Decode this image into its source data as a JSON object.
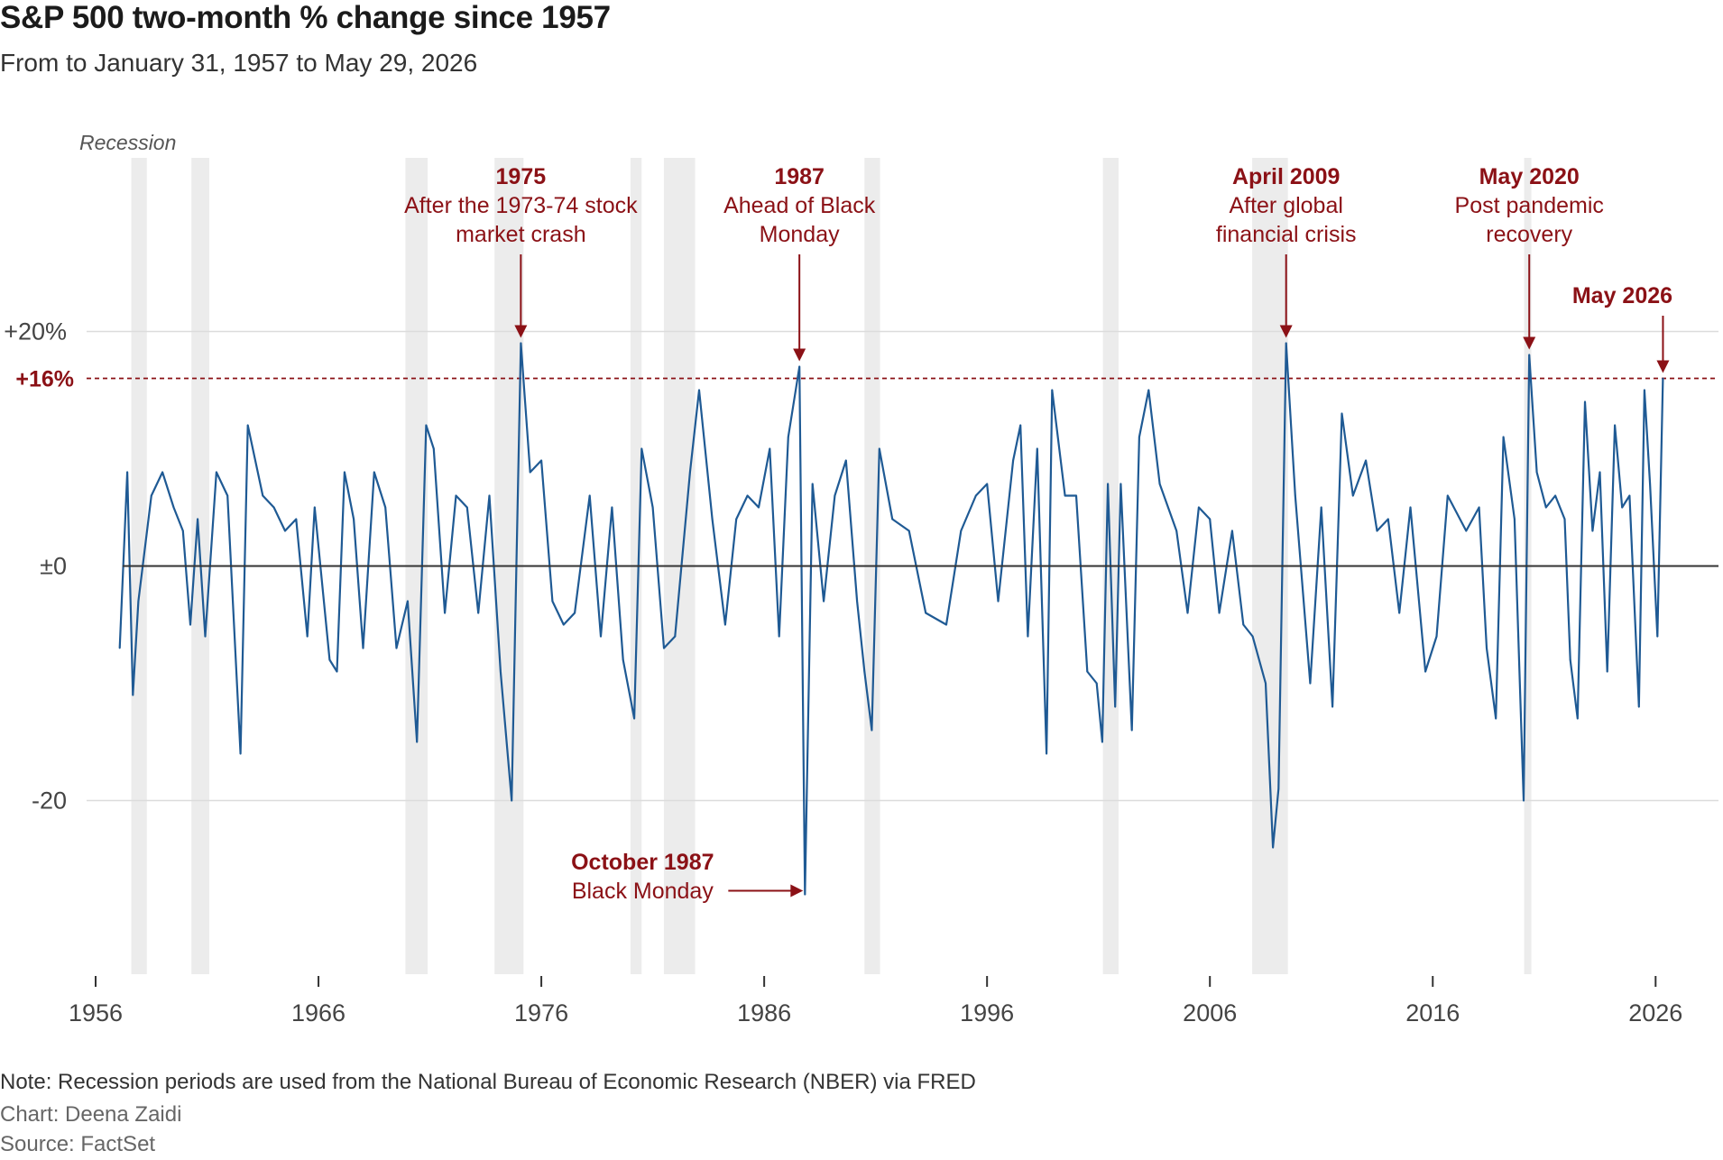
{
  "title": "S&P 500 two-month % change since 1957",
  "subtitle": "From to January 31, 1957 to May 29, 2026",
  "footer": {
    "note": "Note: Recession periods are used from the National Bureau of Economic Research (NBER) via FRED",
    "credit": "Chart: Deena Zaidi",
    "source": "Source: FactSet"
  },
  "colors": {
    "series": "#1f5a94",
    "annotation": "#8b1116",
    "recession": "#ececec",
    "grid": "#dcdcdc",
    "zero": "#333333"
  },
  "chart_data": {
    "type": "bar",
    "unit": "%",
    "x_range": [
      1956,
      2027
    ],
    "ylim": [
      -35,
      35
    ],
    "x_ticks": [
      {
        "year": 1956,
        "label": "1956"
      },
      {
        "year": 1966,
        "label": "1966"
      },
      {
        "year": 1976,
        "label": "1976"
      },
      {
        "year": 1986,
        "label": "1986"
      },
      {
        "year": 1996,
        "label": "1996"
      },
      {
        "year": 2006,
        "label": "2006"
      },
      {
        "year": 2016,
        "label": "2016"
      },
      {
        "year": 2026,
        "label": "2026"
      }
    ],
    "y_ticks": [
      {
        "value": 20,
        "label": "+20%"
      },
      {
        "value": 0,
        "label": "±0"
      },
      {
        "value": -20,
        "label": "-20"
      }
    ],
    "grid": true,
    "reference_line": {
      "value": 16,
      "label": "+16%"
    },
    "recession_label": "Recession",
    "recessions": [
      [
        1957.6,
        1958.3
      ],
      [
        1960.3,
        1961.1
      ],
      [
        1969.9,
        1970.9
      ],
      [
        1973.9,
        1975.2
      ],
      [
        1980.0,
        1980.5
      ],
      [
        1981.5,
        1982.9
      ],
      [
        1990.5,
        1991.2
      ],
      [
        2001.2,
        2001.9
      ],
      [
        2007.9,
        2009.5
      ],
      [
        2020.1,
        2020.4
      ]
    ],
    "series": [
      {
        "points": [
          [
            1957.08,
            -7
          ],
          [
            1957.42,
            8
          ],
          [
            1957.67,
            -11
          ],
          [
            1957.92,
            -3
          ],
          [
            1958.5,
            6
          ],
          [
            1959.0,
            8
          ],
          [
            1959.5,
            5
          ],
          [
            1959.92,
            3
          ],
          [
            1960.25,
            -5
          ],
          [
            1960.58,
            4
          ],
          [
            1960.92,
            -6
          ],
          [
            1961.42,
            8
          ],
          [
            1961.92,
            6
          ],
          [
            1962.5,
            -16
          ],
          [
            1962.83,
            12
          ],
          [
            1963.5,
            6
          ],
          [
            1964.0,
            5
          ],
          [
            1964.5,
            3
          ],
          [
            1965.0,
            4
          ],
          [
            1965.5,
            -6
          ],
          [
            1965.83,
            5
          ],
          [
            1966.5,
            -8
          ],
          [
            1966.83,
            -9
          ],
          [
            1967.17,
            8
          ],
          [
            1967.58,
            4
          ],
          [
            1968.0,
            -7
          ],
          [
            1968.5,
            8
          ],
          [
            1969.0,
            5
          ],
          [
            1969.5,
            -7
          ],
          [
            1970.0,
            -3
          ],
          [
            1970.42,
            -15
          ],
          [
            1970.83,
            12
          ],
          [
            1971.17,
            10
          ],
          [
            1971.67,
            -4
          ],
          [
            1972.17,
            6
          ],
          [
            1972.67,
            5
          ],
          [
            1973.17,
            -4
          ],
          [
            1973.67,
            6
          ],
          [
            1974.17,
            -9
          ],
          [
            1974.67,
            -20
          ],
          [
            1975.08,
            19
          ],
          [
            1975.5,
            8
          ],
          [
            1976.0,
            9
          ],
          [
            1976.5,
            -3
          ],
          [
            1977.0,
            -5
          ],
          [
            1977.5,
            -4
          ],
          [
            1978.17,
            6
          ],
          [
            1978.67,
            -6
          ],
          [
            1979.17,
            5
          ],
          [
            1979.67,
            -8
          ],
          [
            1980.17,
            -13
          ],
          [
            1980.5,
            10
          ],
          [
            1981.0,
            5
          ],
          [
            1981.5,
            -7
          ],
          [
            1982.0,
            -6
          ],
          [
            1982.67,
            8
          ],
          [
            1983.08,
            15
          ],
          [
            1983.67,
            4
          ],
          [
            1984.25,
            -5
          ],
          [
            1984.75,
            4
          ],
          [
            1985.25,
            6
          ],
          [
            1985.75,
            5
          ],
          [
            1986.25,
            10
          ],
          [
            1986.67,
            -6
          ],
          [
            1987.08,
            11
          ],
          [
            1987.58,
            17
          ],
          [
            1987.83,
            -28
          ],
          [
            1988.17,
            7
          ],
          [
            1988.67,
            -3
          ],
          [
            1989.17,
            6
          ],
          [
            1989.67,
            9
          ],
          [
            1990.17,
            -3
          ],
          [
            1990.5,
            -9
          ],
          [
            1990.83,
            -14
          ],
          [
            1991.17,
            10
          ],
          [
            1991.75,
            4
          ],
          [
            1992.5,
            3
          ],
          [
            1993.25,
            -4
          ],
          [
            1994.17,
            -5
          ],
          [
            1994.83,
            3
          ],
          [
            1995.5,
            6
          ],
          [
            1996.0,
            7
          ],
          [
            1996.5,
            -3
          ],
          [
            1997.17,
            9
          ],
          [
            1997.5,
            12
          ],
          [
            1997.83,
            -6
          ],
          [
            1998.25,
            10
          ],
          [
            1998.67,
            -16
          ],
          [
            1998.92,
            15
          ],
          [
            1999.5,
            6
          ],
          [
            2000.0,
            6
          ],
          [
            2000.5,
            -9
          ],
          [
            2000.92,
            -10
          ],
          [
            2001.17,
            -15
          ],
          [
            2001.42,
            7
          ],
          [
            2001.75,
            -12
          ],
          [
            2002.0,
            7
          ],
          [
            2002.5,
            -14
          ],
          [
            2002.83,
            11
          ],
          [
            2003.25,
            15
          ],
          [
            2003.75,
            7
          ],
          [
            2004.5,
            3
          ],
          [
            2005.0,
            -4
          ],
          [
            2005.5,
            5
          ],
          [
            2006.0,
            4
          ],
          [
            2006.42,
            -4
          ],
          [
            2007.0,
            3
          ],
          [
            2007.5,
            -5
          ],
          [
            2007.92,
            -6
          ],
          [
            2008.5,
            -10
          ],
          [
            2008.83,
            -24
          ],
          [
            2009.08,
            -19
          ],
          [
            2009.42,
            19
          ],
          [
            2009.83,
            6
          ],
          [
            2010.5,
            -10
          ],
          [
            2011.0,
            5
          ],
          [
            2011.5,
            -12
          ],
          [
            2011.92,
            13
          ],
          [
            2012.42,
            6
          ],
          [
            2013.0,
            9
          ],
          [
            2013.5,
            3
          ],
          [
            2014.0,
            4
          ],
          [
            2014.5,
            -4
          ],
          [
            2015.0,
            5
          ],
          [
            2015.67,
            -9
          ],
          [
            2016.17,
            -6
          ],
          [
            2016.67,
            6
          ],
          [
            2017.5,
            3
          ],
          [
            2018.08,
            5
          ],
          [
            2018.42,
            -7
          ],
          [
            2018.83,
            -13
          ],
          [
            2019.17,
            11
          ],
          [
            2019.67,
            4
          ],
          [
            2020.08,
            -20
          ],
          [
            2020.33,
            18
          ],
          [
            2020.67,
            8
          ],
          [
            2021.08,
            5
          ],
          [
            2021.5,
            6
          ],
          [
            2021.92,
            4
          ],
          [
            2022.17,
            -8
          ],
          [
            2022.5,
            -13
          ],
          [
            2022.83,
            14
          ],
          [
            2023.17,
            3
          ],
          [
            2023.5,
            8
          ],
          [
            2023.83,
            -9
          ],
          [
            2024.17,
            12
          ],
          [
            2024.5,
            5
          ],
          [
            2024.83,
            6
          ],
          [
            2025.25,
            -12
          ],
          [
            2025.5,
            15
          ],
          [
            2025.75,
            7
          ],
          [
            2026.08,
            -6
          ],
          [
            2026.33,
            16
          ]
        ]
      }
    ],
    "annotations": [
      {
        "id": "1975",
        "head": "1975",
        "lines": [
          "After the 1973-74 stock",
          "market crash"
        ],
        "x": 1975.08,
        "y": 19
      },
      {
        "id": "1987",
        "head": "1987",
        "lines": [
          "Ahead of Black",
          "Monday"
        ],
        "x": 1987.58,
        "y": 17
      },
      {
        "id": "2009",
        "head": "April 2009",
        "lines": [
          "After global",
          "financial crisis"
        ],
        "x": 2009.42,
        "y": 19
      },
      {
        "id": "2020",
        "head": "May 2020",
        "lines": [
          "Post pandemic",
          "recovery"
        ],
        "x": 2020.33,
        "y": 18
      },
      {
        "id": "2026",
        "head": "May 2026",
        "lines": [],
        "x": 2026.33,
        "y": 16
      },
      {
        "id": "oct1987",
        "head": "October 1987",
        "lines": [
          "Black Monday"
        ],
        "x": 1987.83,
        "y": -28
      }
    ]
  }
}
